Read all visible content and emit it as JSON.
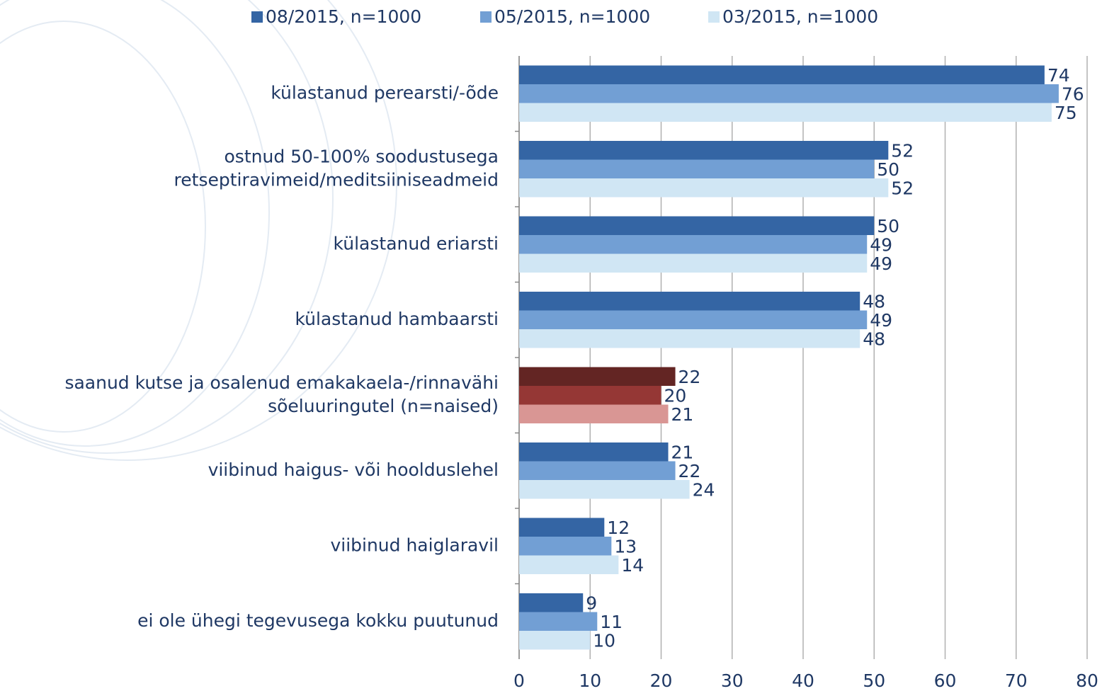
{
  "chart_data": {
    "type": "hbar",
    "categories": [
      [
        "külastanud perearsti/-õde"
      ],
      [
        "ostnud 50-100% soodustusega",
        "retseptiravimeid/meditsiiniseadmeid"
      ],
      [
        "külastanud eriarsti"
      ],
      [
        "külastanud hambaarsti"
      ],
      [
        "saanud kutse ja osalenud emakakaela-/rinnavähi",
        "sõeluuringutel (n=naised)"
      ],
      [
        "viibinud haigus- või hoolduslehel"
      ],
      [
        "viibinud haiglaravil"
      ],
      [
        "ei ole ühegi tegevusega kokku puutunud"
      ]
    ],
    "series": [
      {
        "name": "08/2015, n=1000",
        "color": "#3465a4",
        "colors": [
          "#3465a4",
          "#3465a4",
          "#3465a4",
          "#3465a4",
          "#632523",
          "#3465a4",
          "#3465a4",
          "#3465a4"
        ],
        "values": [
          74,
          52,
          50,
          48,
          22,
          21,
          12,
          9
        ]
      },
      {
        "name": "05/2015, n=1000",
        "color": "#729fd4",
        "colors": [
          "#729fd4",
          "#729fd4",
          "#729fd4",
          "#729fd4",
          "#953735",
          "#729fd4",
          "#729fd4",
          "#729fd4"
        ],
        "values": [
          76,
          50,
          49,
          49,
          20,
          22,
          13,
          11
        ]
      },
      {
        "name": "03/2015, n=1000",
        "color": "#d0e6f4",
        "colors": [
          "#d0e6f4",
          "#d0e6f4",
          "#d0e6f4",
          "#d0e6f4",
          "#d99694",
          "#d0e6f4",
          "#d0e6f4",
          "#d0e6f4"
        ],
        "values": [
          75,
          52,
          49,
          48,
          21,
          24,
          14,
          10
        ]
      }
    ],
    "xlim": [
      0,
      80
    ],
    "xticks": [
      0,
      10,
      20,
      30,
      40,
      50,
      60,
      70,
      80
    ],
    "grid": true,
    "legend": "top"
  }
}
